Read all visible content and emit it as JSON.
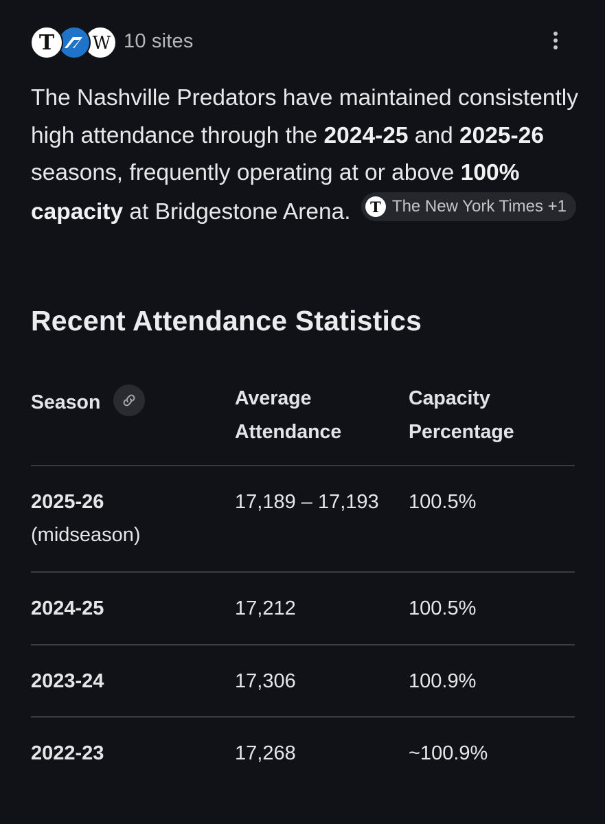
{
  "sources": {
    "count_label": "10 sites",
    "favicons": [
      {
        "name": "new-york-times-icon",
        "glyph": "T"
      },
      {
        "name": "blue-site-icon",
        "glyph": ""
      },
      {
        "name": "wikipedia-icon",
        "glyph": "W"
      }
    ]
  },
  "summary": {
    "part1": "The Nashville Predators have maintained consistently high attendance through the ",
    "bold1": "2024-25",
    "part2": " and ",
    "bold2": "2025-26",
    "part3": " seasons, frequently operating at or above ",
    "bold3": "100% capacity",
    "part4": " at Bridgestone Arena.",
    "chip_label": "The New York Times +1"
  },
  "section": {
    "heading": "Recent Attendance Statistics"
  },
  "table": {
    "headers": {
      "season": "Season",
      "avg_line1": "Average",
      "avg_line2": "Attendance",
      "cap_line1": "Capacity",
      "cap_line2": "Percentage"
    },
    "rows": [
      {
        "season": "2025-26",
        "note": "(midseason)",
        "avg": "17,189 – 17,193",
        "cap": "100.5%"
      },
      {
        "season": "2024-25",
        "note": "",
        "avg": "17,212",
        "cap": "100.5%"
      },
      {
        "season": "2023-24",
        "note": "",
        "avg": "17,306",
        "cap": "100.9%"
      },
      {
        "season": "2022-23",
        "note": "",
        "avg": "17,268",
        "cap": "~100.9%"
      }
    ]
  },
  "colors": {
    "background": "#111217",
    "text": "#e6e6e9",
    "muted": "#b7b8bd",
    "divider": "#3a3b41",
    "chip": "#26272d"
  }
}
